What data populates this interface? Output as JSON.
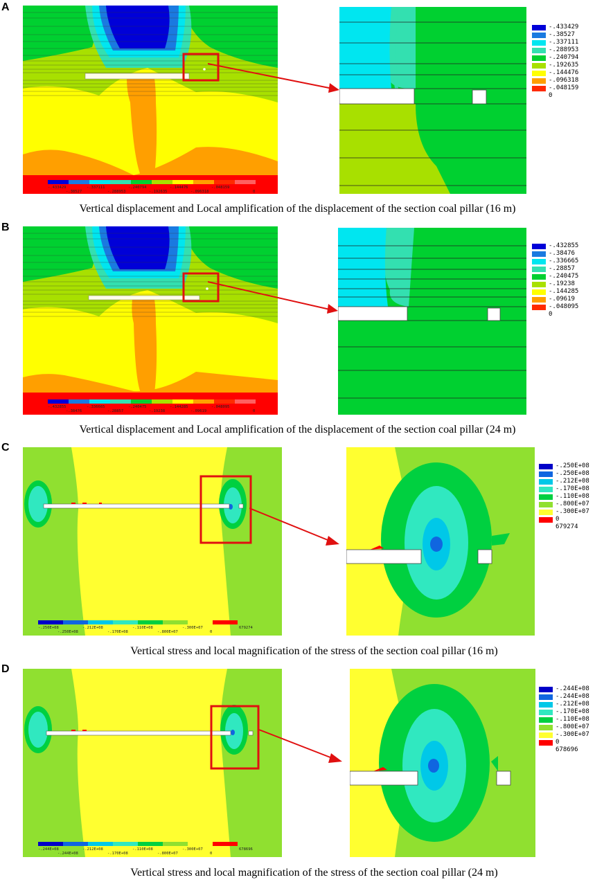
{
  "panels": [
    {
      "letter": "A",
      "caption": "Vertical displacement and Local amplification of the displacement of the section coal pillar (16 m)",
      "legend": [
        "-.433429",
        "-.38527",
        "-.337111",
        "-.288953",
        "-.240794",
        "-.192635",
        "-.144476",
        "-.096318",
        "-.048159",
        "0"
      ],
      "bottom_bar": [
        "-.433429",
        "-.38527",
        "-.337111",
        "-.288953",
        "-.240794",
        "-.192635",
        "-.144476",
        "-.096318",
        "-.048159",
        "0"
      ]
    },
    {
      "letter": "B",
      "caption": "Vertical displacement and Local amplification of the displacement of the section coal pillar (24 m)",
      "legend": [
        "-.432855",
        "-.38476",
        "-.336665",
        "-.28857",
        "-.240475",
        "-.19238",
        "-.144285",
        "-.09619",
        "-.048095",
        "0"
      ],
      "bottom_bar": [
        "-.432855",
        "-.38476",
        "-.336665",
        "-.28857",
        "-.240475",
        "-.19238",
        "-.144285",
        "-.09619",
        "-.048095",
        "0"
      ]
    },
    {
      "letter": "C",
      "caption": "Vertical stress and local magnification of the stress of the section coal pillar (16 m)",
      "legend": [
        "-.250E+08",
        "-.250E+08",
        "-.212E+08",
        "-.170E+08",
        "-.110E+08",
        "-.800E+07",
        "-.300E+07",
        "0",
        "679274"
      ],
      "bottom_bar": [
        "-.250E+08",
        "-.250E+08",
        "-.212E+08",
        "-.170E+08",
        "-.110E+08",
        "-.800E+07",
        "-.300E+07",
        "0",
        "679274"
      ]
    },
    {
      "letter": "D",
      "caption": "Vertical stress and local magnification of the stress of the section coal pillar (24 m)",
      "legend": [
        "-.244E+08",
        "-.244E+08",
        "-.212E+08",
        "-.170E+08",
        "-.110E+08",
        "-.800E+07",
        "-.300E+07",
        "0",
        "678696"
      ],
      "bottom_bar": [
        "-.244E+08",
        "-.244E+08",
        "-.212E+08",
        "-.170E+08",
        "-.110E+08",
        "-.800E+07",
        "-.300E+07",
        "0",
        "678696"
      ]
    }
  ],
  "colors": {
    "disp_scale": [
      "#0000d8",
      "#1a7ae0",
      "#00e6f0",
      "#33e0b0",
      "#00d030",
      "#a8e000",
      "#ffff00",
      "#ff9f00",
      "#ff2a00",
      "#ff0000"
    ],
    "stress_scale": [
      "#0000c8",
      "#1066e0",
      "#00c8e8",
      "#30e8c0",
      "#00d040",
      "#90e030",
      "#ffff30",
      "#ffaa00",
      "#ff0000"
    ],
    "highlight_box": "#e01010",
    "arrow": "#e01010"
  }
}
